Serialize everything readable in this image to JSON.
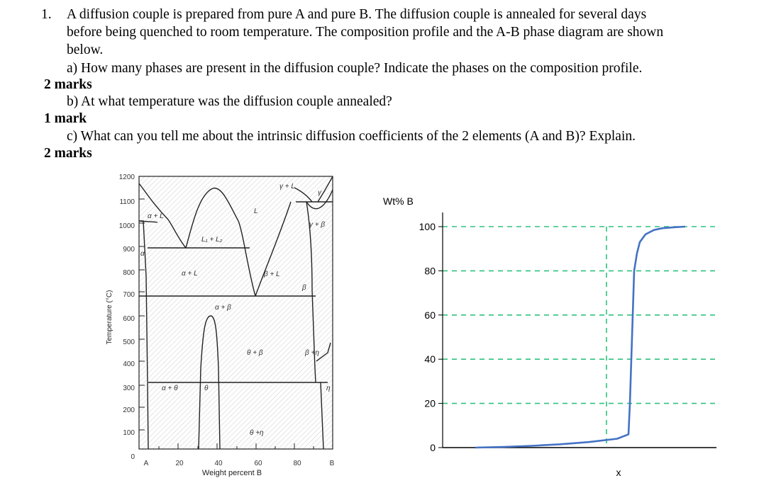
{
  "question": {
    "number": "1.",
    "intro_lines": [
      "A diffusion couple is prepared from pure A and pure B. The diffusion couple is annealed for several days",
      "before being quenched to room temperature.  The composition profile and the A-B phase diagram are shown",
      "below."
    ],
    "parts": [
      {
        "text": "a) How many phases are present in the diffusion couple?  Indicate the phases on the composition profile.",
        "marks": "2 marks"
      },
      {
        "text": "b) At what temperature was the diffusion couple annealed?",
        "marks": "1 mark"
      },
      {
        "text": "c) What can you tell me about the intrinsic diffusion coefficients of the 2 elements (A and B)? Explain.",
        "marks": "2 marks"
      }
    ]
  },
  "phase_diagram": {
    "ylabel": "Temperature (°C)",
    "xlabel": "Weight percent B",
    "y_ticks": [
      "1200",
      "1100",
      "1000",
      "900",
      "800",
      "700",
      "600",
      "500",
      "400",
      "300",
      "200",
      "100",
      "0"
    ],
    "x_ticks": [
      "A",
      "20",
      "40",
      "60",
      "80",
      "B"
    ],
    "region_labels": {
      "gamma_l": "γ + L",
      "gamma": "γ",
      "alpha_l_top": "α + L",
      "l1_l2": "L₁ + L₂",
      "l": "L",
      "gamma_beta": "γ + β",
      "alpha": "α",
      "alpha_l": "α + L",
      "beta_l": "β + L",
      "beta": "β",
      "alpha_beta": "α + β",
      "theta_beta": "θ + β",
      "beta_eta": "β +η",
      "alpha_theta": "α + θ",
      "theta": "θ",
      "eta": "η",
      "theta_eta": "θ +η"
    }
  },
  "chart_data": {
    "type": "line",
    "ylabel": "Wt% B",
    "xlabel": "x",
    "y_ticks": [
      0,
      20,
      40,
      60,
      80,
      100
    ],
    "ylim": [
      0,
      100
    ],
    "grid": true,
    "grid_style": "dashed",
    "grid_color": "#2ec27e",
    "line_color": "#4472c4",
    "series": [
      {
        "x": [
          0,
          1,
          2,
          3,
          4,
          5,
          5.4,
          5.45,
          5.5,
          5.55,
          5.6,
          5.7,
          5.8,
          6,
          6.3,
          6.6,
          7,
          7.4
        ],
        "values": [
          0,
          0.3,
          0.8,
          1.5,
          2.5,
          4,
          6,
          20,
          40,
          60,
          80,
          88,
          93,
          96.5,
          98.5,
          99.3,
          99.7,
          100
        ]
      }
    ]
  }
}
